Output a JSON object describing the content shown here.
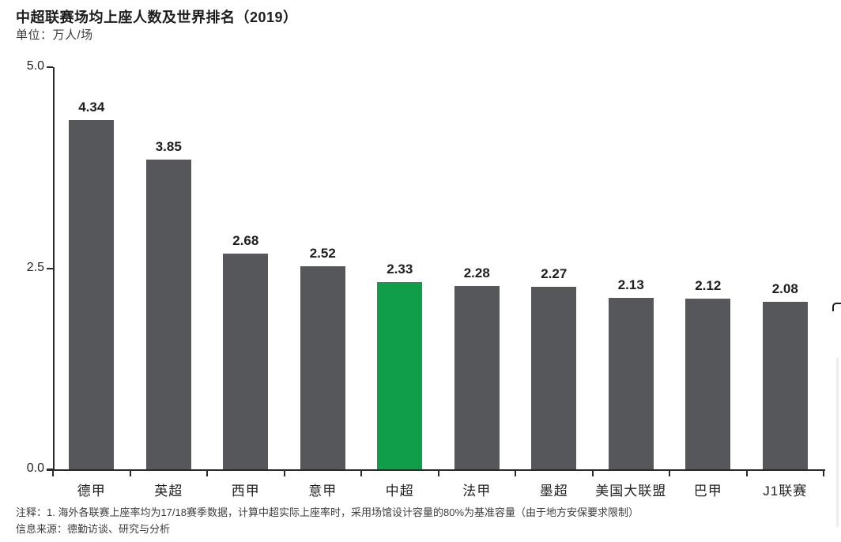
{
  "header": {
    "title": "中超联赛场均上座人数及世界排名（2019）",
    "unit_label": "单位：万人/场"
  },
  "chart_data": {
    "type": "bar",
    "title": "中超联赛场均上座人数及世界排名（2019）",
    "unit": "单位：万人/场",
    "categories": [
      "德甲",
      "英超",
      "西甲",
      "意甲",
      "中超",
      "法甲",
      "墨超",
      "美国大联盟",
      "巴甲",
      "J1联赛"
    ],
    "values": [
      4.34,
      3.85,
      2.68,
      2.52,
      2.33,
      2.28,
      2.27,
      2.13,
      2.12,
      2.08
    ],
    "value_labels": [
      "4.34",
      "3.85",
      "2.68",
      "2.52",
      "2.33",
      "2.28",
      "2.27",
      "2.13",
      "2.12",
      "2.08"
    ],
    "highlight_index": 4,
    "highlight_category": "中超",
    "ylim": [
      0,
      5.0
    ],
    "yticks": [
      0.0,
      2.5,
      5.0
    ],
    "ytick_labels": [
      "0.0",
      "2.5",
      "5.0"
    ],
    "grid": false,
    "legend_position": "none",
    "bar_color": "#56575a",
    "highlight_color": "#119e4a",
    "axis_color": "#2a2a2c"
  },
  "footnotes": {
    "note": "注释：1. 海外各联赛上座率均为17/18赛季数据，计算中超实际上座率时，采用场馆设计容量的80%为基准容量（由于地方安保要求限制）",
    "source": "信息来源：德勤访谈、研究与分析"
  },
  "colors": {
    "background": "#ffffff",
    "bar_default": "#56575a",
    "bar_highlight": "#119e4a",
    "text_primary": "#1d1d1f",
    "text_secondary": "#3d3d3f"
  }
}
